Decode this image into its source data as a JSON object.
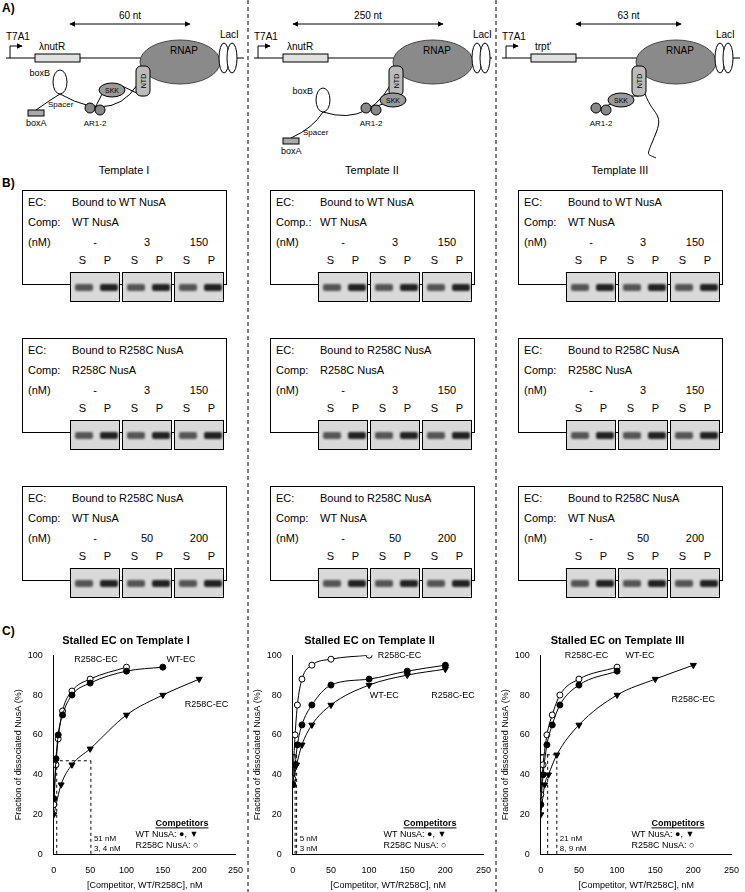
{
  "panel_a": {
    "label": "A)",
    "templates": [
      {
        "name": "Template I",
        "promoter": "T7A1",
        "site": "λnutR",
        "span": "60 nt",
        "polymerase": "RNAP",
        "repressor": "LacI",
        "rna_elements": [
          "boxB",
          "boxA",
          "Spacer"
        ],
        "domains": [
          "NTD",
          "SKK",
          "AR1-2"
        ]
      },
      {
        "name": "Template II",
        "promoter": "T7A1",
        "site": "λnutR",
        "span": "250 nt",
        "polymerase": "RNAP",
        "repressor": "LacI",
        "rna_elements": [
          "boxB",
          "boxA",
          "Spacer"
        ],
        "domains": [
          "NTD",
          "SKK",
          "AR1-2"
        ]
      },
      {
        "name": "Template III",
        "promoter": "T7A1",
        "site": "trpt'",
        "span": "63 nt",
        "polymerase": "RNAP",
        "repressor": "LacI",
        "domains": [
          "NTD",
          "SKK",
          "AR1-2"
        ]
      }
    ]
  },
  "panel_b": {
    "label": "B)",
    "columns": [
      [
        {
          "ec_label": "EC:",
          "ec": "Bound to WT NusA",
          "comp_label": "Comp:",
          "comp": "WT NusA",
          "unit": "(nM)",
          "concentrations": [
            "-",
            3,
            150
          ],
          "lanes": [
            "S",
            "P"
          ]
        },
        {
          "ec_label": "EC:",
          "ec": "Bound to R258C NusA",
          "comp_label": "Comp:",
          "comp": "R258C NusA",
          "unit": "(nM)",
          "concentrations": [
            "-",
            3,
            150
          ],
          "lanes": [
            "S",
            "P"
          ]
        },
        {
          "ec_label": "EC:",
          "ec": "Bound to R258C NusA",
          "comp_label": "Comp:",
          "comp": "WT NusA",
          "unit": "(nM)",
          "concentrations": [
            "-",
            50,
            200
          ],
          "lanes": [
            "S",
            "P"
          ]
        }
      ],
      [
        {
          "ec_label": "EC:",
          "ec": "Bound to WT NusA",
          "comp_label": "Comp.:",
          "comp": "WT NusA",
          "unit": "(nM)",
          "concentrations": [
            "-",
            3,
            150
          ],
          "lanes": [
            "S",
            "P"
          ]
        },
        {
          "ec_label": "EC:",
          "ec": "Bound to R258C NusA",
          "comp_label": "Comp:",
          "comp": "R258C NusA",
          "unit": "(nM)",
          "concentrations": [
            "-",
            3,
            150
          ],
          "lanes": [
            "S",
            "P"
          ]
        },
        {
          "ec_label": "EC:",
          "ec": "Bound to R258C NusA",
          "comp_label": "Comp:",
          "comp": "WT NusA",
          "unit": "(nM)",
          "concentrations": [
            "-",
            50,
            200
          ],
          "lanes": [
            "S",
            "P"
          ]
        }
      ],
      [
        {
          "ec_label": "EC:",
          "ec": "Bound to WT NusA",
          "comp_label": "Comp:",
          "comp": "WT NusA",
          "unit": "(nM)",
          "concentrations": [
            "-",
            3,
            150
          ],
          "lanes": [
            "S",
            "P"
          ]
        },
        {
          "ec_label": "EC:",
          "ec": "Bound to R258C NusA",
          "comp_label": "Comp:",
          "comp": "R258C NusA",
          "unit": "(nM)",
          "concentrations": [
            "-",
            3,
            150
          ],
          "lanes": [
            "S",
            "P"
          ]
        },
        {
          "ec_label": "EC:",
          "ec": "Bound to R258C NusA",
          "comp_label": "Comp:",
          "comp": "WT NusA",
          "unit": "(nM)",
          "concentrations": [
            "-",
            50,
            200
          ],
          "lanes": [
            "S",
            "P"
          ]
        }
      ]
    ]
  },
  "panel_c": {
    "label": "C)"
  },
  "chart_data": [
    {
      "type": "line",
      "title": "Stalled EC on Template I",
      "x_label": "[Competitor, WT/R258C], nM",
      "y_label": "Fraction of dissociated NusA (%)",
      "xlim": [
        0,
        250
      ],
      "xticks": [
        0,
        50,
        100,
        150,
        200,
        250
      ],
      "ylim": [
        0,
        100
      ],
      "yticks": [
        0,
        20,
        40,
        60,
        80,
        100
      ],
      "grid": false,
      "series": [
        {
          "color": "#000000",
          "marker": "circle",
          "line_style": "solid",
          "x": [
            0,
            3,
            6,
            12,
            25,
            50,
            100,
            150
          ],
          "values": [
            28,
            48,
            60,
            70,
            80,
            86,
            92,
            94
          ]
        },
        {
          "color": "#000000",
          "marker": "circle_open",
          "line_style": "solid",
          "x": [
            0,
            3,
            6,
            12,
            25,
            50,
            100
          ],
          "values": [
            25,
            45,
            58,
            72,
            82,
            88,
            94
          ]
        },
        {
          "color": "#000000",
          "marker": "triangle_down",
          "line_style": "solid",
          "x": [
            0,
            10,
            25,
            50,
            100,
            150,
            200
          ],
          "values": [
            20,
            35,
            45,
            53,
            70,
            80,
            88
          ]
        }
      ],
      "guides": [
        {
          "x": 4,
          "y": 47,
          "label": "3, 4 nM"
        },
        {
          "x": 51,
          "y": 47,
          "label": "51 nM"
        }
      ],
      "annotations": [
        {
          "text": "R258C-EC",
          "x": 58,
          "y": 98
        },
        {
          "text": "WT-EC",
          "x": 175,
          "y": 98
        },
        {
          "text": "R258C-EC",
          "x": 210,
          "y": 75
        }
      ],
      "key": {
        "title": "Competitors",
        "entries": [
          "WT NusA: ●, ▼",
          "R258C NusA: ○"
        ]
      }
    },
    {
      "type": "line",
      "title": "Stalled EC on Template II",
      "x_label": "[Competitor, WT/R258C], nM",
      "y_label": "Fraction of dissociated NusA (%)",
      "xlim": [
        0,
        250
      ],
      "xticks": [
        0,
        50,
        100,
        150,
        200,
        250
      ],
      "ylim": [
        0,
        100
      ],
      "yticks": [
        0,
        20,
        40,
        60,
        80,
        100
      ],
      "grid": false,
      "series": [
        {
          "color": "#000000",
          "marker": "circle",
          "line_style": "solid",
          "x": [
            0,
            3,
            6,
            12,
            25,
            50,
            100,
            150,
            200
          ],
          "values": [
            35,
            45,
            55,
            65,
            75,
            85,
            88,
            92,
            95
          ]
        },
        {
          "color": "#000000",
          "marker": "circle_open",
          "line_style": "solid",
          "x": [
            0,
            3,
            6,
            12,
            25,
            50,
            100
          ],
          "values": [
            38,
            60,
            75,
            88,
            95,
            98,
            100
          ]
        },
        {
          "color": "#000000",
          "marker": "triangle_down",
          "line_style": "solid",
          "x": [
            0,
            5,
            12,
            25,
            50,
            100,
            150,
            200
          ],
          "values": [
            35,
            45,
            55,
            65,
            75,
            85,
            90,
            93
          ]
        }
      ],
      "guides": [
        {
          "x": 3,
          "y": 50,
          "label": "3 nM"
        },
        {
          "x": 5,
          "y": 50,
          "label": "5 nM"
        }
      ],
      "annotations": [
        {
          "text": "R258C-EC",
          "x": 140,
          "y": 100
        },
        {
          "text": "WT-EC",
          "x": 120,
          "y": 80
        },
        {
          "text": "R258C-EC",
          "x": 210,
          "y": 80
        }
      ],
      "key": {
        "title": "Competitors",
        "entries": [
          "WT NusA: ●, ▼",
          "R258C NusA: ○"
        ]
      }
    },
    {
      "type": "line",
      "title": "Stalled EC on Template III",
      "x_label": "[Competitor, WT/R258C], nM",
      "y_label": "Fraction of dissociated NusA (%)",
      "xlim": [
        0,
        250
      ],
      "xticks": [
        0,
        50,
        100,
        150,
        200,
        250
      ],
      "ylim": [
        0,
        100
      ],
      "yticks": [
        0,
        20,
        40,
        60,
        80,
        100
      ],
      "grid": false,
      "series": [
        {
          "color": "#000000",
          "marker": "circle",
          "line_style": "solid",
          "x": [
            0,
            3,
            8,
            15,
            25,
            50,
            100
          ],
          "values": [
            25,
            40,
            55,
            65,
            75,
            85,
            92
          ]
        },
        {
          "color": "#000000",
          "marker": "circle_open",
          "line_style": "solid",
          "x": [
            0,
            3,
            8,
            15,
            25,
            50,
            100
          ],
          "values": [
            30,
            45,
            60,
            70,
            80,
            88,
            94
          ]
        },
        {
          "color": "#000000",
          "marker": "triangle_down",
          "line_style": "solid",
          "x": [
            0,
            5,
            10,
            21,
            50,
            100,
            150,
            200
          ],
          "values": [
            20,
            35,
            40,
            50,
            65,
            80,
            88,
            95
          ]
        }
      ],
      "guides": [
        {
          "x": 9,
          "y": 50,
          "label": "8, 9 nM"
        },
        {
          "x": 21,
          "y": 50,
          "label": "21 nM"
        }
      ],
      "annotations": [
        {
          "text": "R258C-EC",
          "x": 60,
          "y": 100
        },
        {
          "text": "WT-EC",
          "x": 130,
          "y": 100
        },
        {
          "text": "R258C-EC",
          "x": 200,
          "y": 78
        }
      ],
      "key": {
        "title": "Competitors",
        "entries": [
          "WT NusA: ●, ▼",
          "R258C NusA: ○"
        ]
      }
    }
  ]
}
